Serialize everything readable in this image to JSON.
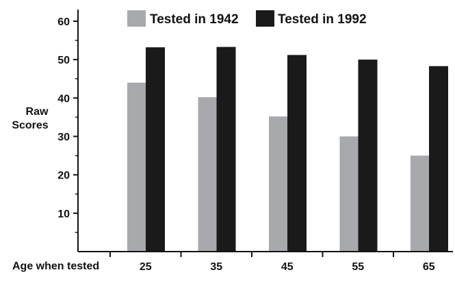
{
  "chart_data": {
    "type": "bar",
    "categories": [
      "25",
      "35",
      "45",
      "55",
      "65"
    ],
    "series": [
      {
        "name": "Tested in 1942",
        "values": [
          44,
          40.2,
          35.2,
          30,
          25
        ],
        "color": "#a7a9ac"
      },
      {
        "name": "Tested in 1992",
        "values": [
          53.2,
          53.3,
          51.2,
          50,
          48.3
        ],
        "color": "#1a1a1a"
      }
    ],
    "ylabel": "Raw Scores",
    "xlabel": "Age when tested",
    "ylim": [
      0,
      60
    ],
    "yticks": [
      10,
      20,
      30,
      40,
      50,
      60
    ],
    "grid": false,
    "legend": "top"
  }
}
